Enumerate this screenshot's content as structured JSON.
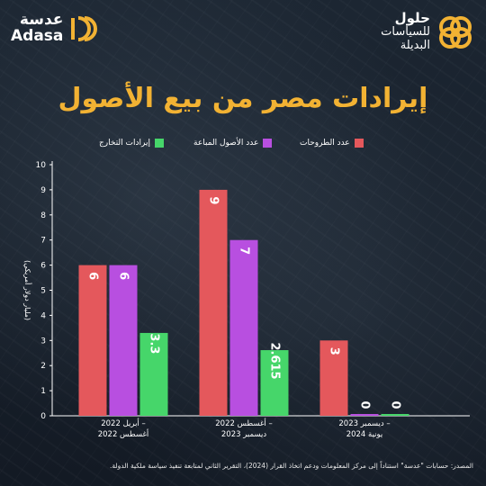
{
  "brand": {
    "adasa_ar": "عدسة",
    "adasa_en": "Adasa",
    "hulul_line1": "حلول",
    "hulul_line2": "للسياسات",
    "hulul_line3": "البديلة"
  },
  "colors": {
    "title": "#f2b233",
    "red": "#e4585c",
    "purple": "#b84fe0",
    "green": "#46d66a"
  },
  "source_note": "المصدر: حسابات \"عدسة\" استناداً إلى مركز المعلومات ودعم اتخاذ القرار (2024)، التقرير الثاني لمتابعة تنفيذ سياسة ملكية الدولة.",
  "chart_data": {
    "type": "bar",
    "title": "إيرادات مصر من بيع الأصول",
    "ylabel": "(مليار دولار أمريكي)",
    "ylim": [
      0,
      10
    ],
    "yticks": [
      "0",
      "1",
      "2",
      "3",
      "4",
      "5",
      "6",
      "7",
      "8",
      "9",
      "10"
    ],
    "categories": [
      [
        "أبريل 2022 –",
        "أغسطس 2022"
      ],
      [
        "أغسطس 2022 –",
        "ديسمبر 2023"
      ],
      [
        "ديسمبر 2023 –",
        "يونية 2024"
      ]
    ],
    "series": [
      {
        "name": "عدد الطروحات",
        "color": "#e4585c",
        "values": [
          6,
          9,
          3
        ],
        "labels": [
          "6",
          "9",
          "3"
        ]
      },
      {
        "name": "عدد الأصول المباعة",
        "color": "#b84fe0",
        "values": [
          6,
          7,
          0
        ],
        "labels": [
          "6",
          "7",
          "0"
        ]
      },
      {
        "name": "إيرادات التخارج",
        "color": "#46d66a",
        "values": [
          3.3,
          2.615,
          0
        ],
        "labels": [
          "3.3",
          "2.615",
          "0"
        ]
      }
    ],
    "legend_position": "top",
    "grid": false
  }
}
